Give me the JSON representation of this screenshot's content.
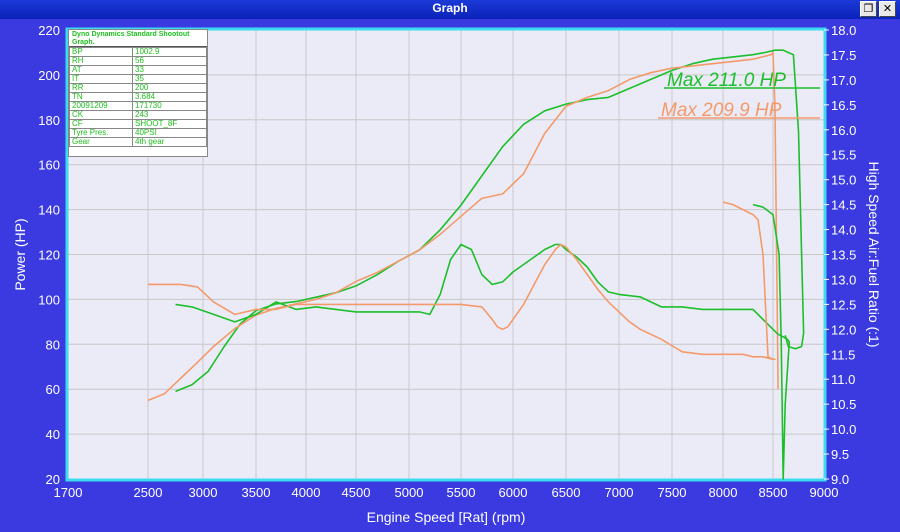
{
  "window": {
    "title": "Graph",
    "restore_icon": "restore-icon",
    "close_icon": "close-icon",
    "restore_glyph": "❐",
    "close_glyph": "✕"
  },
  "colors": {
    "background": "#3a3ae0",
    "plot_bg": "#ebebf8",
    "frame": "#3cdcf0",
    "grid": "#c8c8c8",
    "green": "#1cbf2a",
    "orange": "#f49a6a"
  },
  "info_box": {
    "header": "Dyno Dynamics Standard Shootout Graph.",
    "rows": [
      {
        "k": "BP",
        "v": "1002.9"
      },
      {
        "k": "RH",
        "v": "56"
      },
      {
        "k": "AT",
        "v": "33"
      },
      {
        "k": "IT",
        "v": "35"
      },
      {
        "k": "RR",
        "v": "200"
      },
      {
        "k": "TN",
        "v": "3.684"
      },
      {
        "k": "20091209",
        "v": "171730"
      },
      {
        "k": "CK",
        "v": "243"
      },
      {
        "k": "CF",
        "v": "SHOOT_8F"
      },
      {
        "k": "Tyre Pres.",
        "v": "40PSI"
      },
      {
        "k": "Gear",
        "v": "4th gear"
      }
    ]
  },
  "chart_data": {
    "type": "line",
    "title": "",
    "xlabel": "Engine Speed [Rat] (rpm)",
    "ylabel": "Power (HP)",
    "y2label": "High Speed Air:Fuel Ratio (:1)",
    "xlim": [
      1700,
      9000
    ],
    "ylim": [
      20,
      220
    ],
    "y2lim": [
      9.0,
      18.0
    ],
    "x_ticks": [
      1700,
      2500,
      3000,
      3500,
      4000,
      4500,
      5000,
      5500,
      6000,
      6500,
      7000,
      7500,
      8000,
      8500,
      9000
    ],
    "y_ticks": [
      20,
      40,
      60,
      80,
      100,
      120,
      140,
      160,
      180,
      200,
      220
    ],
    "y2_ticks": [
      "9.0",
      "9.5",
      "10.0",
      "10.5",
      "11.0",
      "11.5",
      "12.0",
      "12.5",
      "13.0",
      "13.5",
      "14.0",
      "14.5",
      "15.0",
      "15.5",
      "16.0",
      "16.5",
      "17.0",
      "17.5",
      "18.0"
    ],
    "grid": true,
    "annotations": [
      {
        "text": "Max 211.0 HP",
        "color": "#1cbf2a"
      },
      {
        "text": "Max 209.9 HP",
        "color": "#f49a6a"
      }
    ],
    "series": [
      {
        "axis": "left",
        "color": "#1cbf2a",
        "x": [
          2750,
          2900,
          3050,
          3200,
          3350,
          3500,
          3700,
          3900,
          4100,
          4300,
          4500,
          4700,
          4900,
          5100,
          5300,
          5500,
          5700,
          5900,
          6100,
          6300,
          6500,
          6700,
          6900,
          7100,
          7300,
          7500,
          7700,
          7900,
          8100,
          8300,
          8420,
          8520,
          8600,
          8650,
          8700,
          8750,
          8800,
          8780,
          8720,
          8650,
          8620
        ],
        "y": [
          59,
          62,
          68,
          79,
          89,
          95,
          98,
          99,
          101,
          103,
          106,
          111,
          117,
          122,
          131,
          142,
          155,
          168,
          178,
          184,
          187,
          189,
          190,
          194,
          198,
          202,
          205,
          207,
          208,
          209,
          210,
          211,
          211,
          210,
          209,
          175,
          85,
          79,
          78,
          79,
          84
        ]
      },
      {
        "axis": "left",
        "color": "#f49a6a",
        "x": [
          2500,
          2650,
          2800,
          2950,
          3100,
          3300,
          3500,
          3700,
          3900,
          4100,
          4300,
          4500,
          4700,
          4900,
          5100,
          5300,
          5500,
          5700,
          5900,
          6100,
          6300,
          6500,
          6700,
          6900,
          7100,
          7300,
          7500,
          7700,
          7900,
          8100,
          8300,
          8480,
          8500,
          8520,
          8550
        ],
        "y": [
          55,
          58,
          65,
          72,
          79,
          87,
          93,
          96,
          98,
          100,
          103,
          108,
          112,
          117,
          122,
          129,
          137,
          145,
          147,
          156,
          174,
          186,
          190,
          193,
          198,
          201,
          203,
          204,
          205,
          206,
          207,
          209,
          210,
          185,
          60
        ]
      },
      {
        "axis": "right",
        "color": "#1cbf2a",
        "x": [
          2750,
          2900,
          3100,
          3300,
          3500,
          3700,
          3900,
          4100,
          4300,
          4500,
          4700,
          4900,
          5100,
          5200,
          5300,
          5400,
          5500,
          5600,
          5700,
          5800,
          5900,
          6000,
          6100,
          6200,
          6300,
          6400,
          6450,
          6500,
          6600,
          6700,
          6800,
          6900,
          7000,
          7200,
          7400,
          7600,
          7800,
          8000,
          8200,
          8300,
          8400,
          8500,
          8550,
          8600,
          8640,
          8660,
          8620,
          8600,
          8580,
          8560,
          8500,
          8400,
          8300
        ],
        "y": [
          12.5,
          12.45,
          12.3,
          12.15,
          12.3,
          12.55,
          12.4,
          12.45,
          12.4,
          12.35,
          12.35,
          12.35,
          12.35,
          12.3,
          12.7,
          13.4,
          13.7,
          13.6,
          13.1,
          12.9,
          12.95,
          13.15,
          13.3,
          13.45,
          13.6,
          13.7,
          13.7,
          13.6,
          13.45,
          13.25,
          12.95,
          12.75,
          12.7,
          12.65,
          12.45,
          12.45,
          12.4,
          12.4,
          12.4,
          12.4,
          12.2,
          12.0,
          11.9,
          11.85,
          11.8,
          11.75,
          10.5,
          9.0,
          11.8,
          13.5,
          14.3,
          14.45,
          14.5
        ]
      },
      {
        "axis": "right",
        "color": "#f49a6a",
        "x": [
          2500,
          2650,
          2800,
          2950,
          3100,
          3300,
          3500,
          3700,
          3900,
          4100,
          4300,
          4500,
          4700,
          4900,
          5100,
          5300,
          5500,
          5700,
          5800,
          5850,
          5900,
          5950,
          6000,
          6100,
          6200,
          6300,
          6400,
          6450,
          6500,
          6600,
          6700,
          6800,
          6900,
          7000,
          7100,
          7200,
          7400,
          7600,
          7800,
          8000,
          8200,
          8300,
          8400,
          8500,
          8520,
          8500,
          8450,
          8400,
          8350,
          8300,
          8250,
          8200,
          8100,
          8000
        ],
        "y": [
          12.9,
          12.9,
          12.9,
          12.85,
          12.55,
          12.3,
          12.4,
          12.4,
          12.5,
          12.5,
          12.5,
          12.5,
          12.5,
          12.5,
          12.5,
          12.5,
          12.5,
          12.45,
          12.2,
          12.05,
          12.0,
          12.05,
          12.2,
          12.5,
          12.9,
          13.3,
          13.6,
          13.7,
          13.65,
          13.4,
          13.1,
          12.8,
          12.55,
          12.35,
          12.15,
          12.0,
          11.8,
          11.55,
          11.5,
          11.5,
          11.5,
          11.45,
          11.45,
          11.4,
          11.4,
          11.4,
          11.45,
          13.5,
          14.2,
          14.3,
          14.35,
          14.4,
          14.5,
          14.55
        ]
      }
    ]
  }
}
